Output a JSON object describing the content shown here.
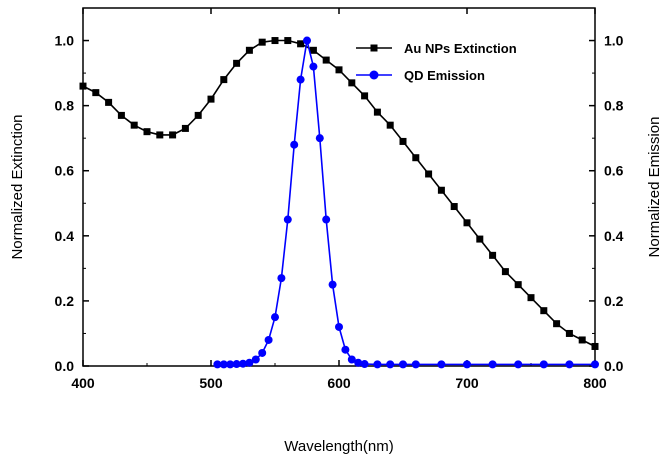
{
  "chart_data": {
    "type": "line",
    "xlabel": "Wavelength(nm)",
    "ylabel_left": "Normalized Extinction",
    "ylabel_right": "Normalized Emission",
    "xlim": [
      400,
      800
    ],
    "ylim": [
      0,
      1.1
    ],
    "x_ticks": [
      "400",
      "500",
      "600",
      "700",
      "800"
    ],
    "y_ticks": [
      "0.0",
      "0.2",
      "0.4",
      "0.6",
      "0.8",
      "1.0"
    ],
    "legend_placement": "top-right",
    "series": [
      {
        "name": "Au NPs Extinction",
        "color": "#000000",
        "marker": "square",
        "x": [
          400,
          410,
          420,
          430,
          440,
          450,
          460,
          470,
          480,
          490,
          500,
          510,
          520,
          530,
          540,
          550,
          560,
          570,
          580,
          590,
          600,
          610,
          620,
          630,
          640,
          650,
          660,
          670,
          680,
          690,
          700,
          710,
          720,
          730,
          740,
          750,
          760,
          770,
          780,
          790,
          800
        ],
        "y": [
          0.86,
          0.84,
          0.81,
          0.77,
          0.74,
          0.72,
          0.71,
          0.71,
          0.73,
          0.77,
          0.82,
          0.88,
          0.93,
          0.97,
          0.995,
          1.0,
          1.0,
          0.99,
          0.97,
          0.94,
          0.91,
          0.87,
          0.83,
          0.78,
          0.74,
          0.69,
          0.64,
          0.59,
          0.54,
          0.49,
          0.44,
          0.39,
          0.34,
          0.29,
          0.25,
          0.21,
          0.17,
          0.13,
          0.1,
          0.08,
          0.06
        ]
      },
      {
        "name": "QD Emission",
        "color": "#0000ff",
        "marker": "circle",
        "x": [
          505,
          510,
          515,
          520,
          525,
          530,
          535,
          540,
          545,
          550,
          555,
          560,
          565,
          570,
          575,
          580,
          585,
          590,
          595,
          600,
          605,
          610,
          615,
          620,
          630,
          640,
          650,
          660,
          680,
          700,
          720,
          740,
          760,
          780,
          800
        ],
        "y": [
          0.005,
          0.005,
          0.005,
          0.006,
          0.007,
          0.01,
          0.02,
          0.04,
          0.08,
          0.15,
          0.27,
          0.45,
          0.68,
          0.88,
          1.0,
          0.92,
          0.7,
          0.45,
          0.25,
          0.12,
          0.05,
          0.02,
          0.01,
          0.006,
          0.005,
          0.005,
          0.005,
          0.005,
          0.005,
          0.005,
          0.005,
          0.005,
          0.005,
          0.005,
          0.005
        ]
      }
    ]
  }
}
